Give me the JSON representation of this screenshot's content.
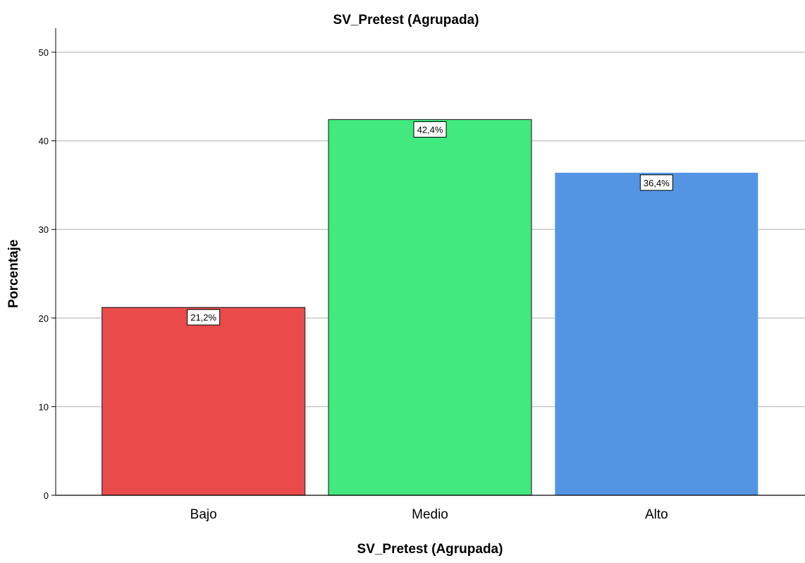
{
  "chart_data": {
    "type": "bar",
    "title": "SV_Pretest (Agrupada)",
    "xlabel": "SV_Pretest (Agrupada)",
    "ylabel": "Porcentaje",
    "categories": [
      "Bajo",
      "Medio",
      "Alto"
    ],
    "values": [
      21.2,
      42.4,
      36.4
    ],
    "data_labels": [
      "21,2%",
      "42,4%",
      "36,4%"
    ],
    "colors": [
      "#ea4a4a",
      "#41e97e",
      "#5495e3"
    ],
    "ylim": [
      0,
      50
    ],
    "yticks": [
      0,
      10,
      20,
      30,
      40,
      50
    ],
    "grid": true
  }
}
